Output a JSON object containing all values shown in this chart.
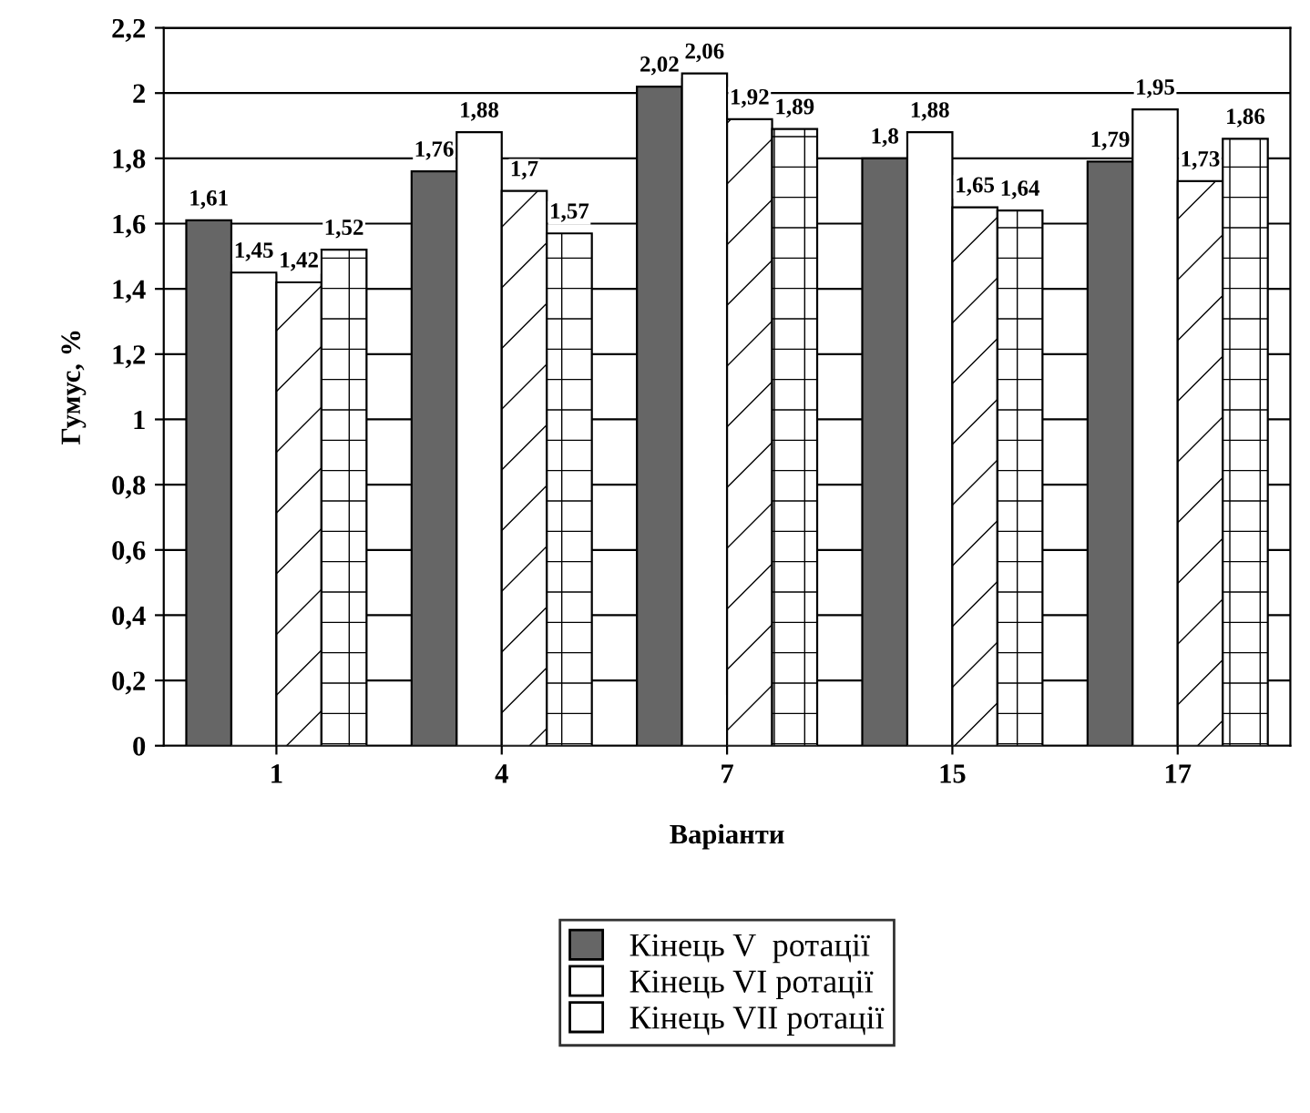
{
  "chart_data": {
    "type": "bar",
    "xlabel": "Варіанти",
    "ylabel": "Гумус, %",
    "categories": [
      "1",
      "4",
      "7",
      "15",
      "17"
    ],
    "series": [
      {
        "name": "Кінець V  ротації",
        "color": "#666666",
        "values": [
          1.61,
          1.76,
          2.02,
          1.8,
          1.79
        ],
        "value_labels": [
          "1,61",
          "1,76",
          "2,02",
          "1,8",
          "1,79"
        ]
      },
      {
        "name": "Кінець VI ротації",
        "color": "#ffffff",
        "values": [
          1.45,
          1.88,
          2.06,
          1.88,
          1.95
        ],
        "value_labels": [
          "1,45",
          "1,88",
          "2,06",
          "1,88",
          "1,95"
        ]
      },
      {
        "name": "Кінець VII ротації",
        "color": "#ffffff",
        "values": [
          1.42,
          1.7,
          1.92,
          1.65,
          1.73
        ],
        "value_labels": [
          "1,42",
          "1,7",
          "1,92",
          "1,65",
          "1,73"
        ]
      },
      {
        "color": "#ffffff",
        "values": [
          1.52,
          1.57,
          1.89,
          1.64,
          1.86
        ],
        "value_labels": [
          "1,52",
          "1,57",
          "1,89",
          "1,64",
          "1,86"
        ]
      }
    ],
    "ylim": [
      0,
      2.2
    ],
    "yticks": [
      0,
      {
        "value": 0.2,
        "label": "0,2"
      },
      {
        "value": 0.4,
        "label": "0,4"
      },
      {
        "value": 0.6,
        "label": "0,6"
      },
      {
        "value": 0.8,
        "label": "0,8"
      },
      1,
      {
        "value": 1.2,
        "label": "1,2"
      },
      {
        "value": 1.4,
        "label": "1,4"
      },
      {
        "value": 1.6,
        "label": "1,6"
      },
      {
        "value": 1.8,
        "label": "1,8"
      },
      2,
      {
        "value": 2.2,
        "label": "2,2"
      }
    ],
    "grid": "y",
    "legend": "bottom"
  }
}
